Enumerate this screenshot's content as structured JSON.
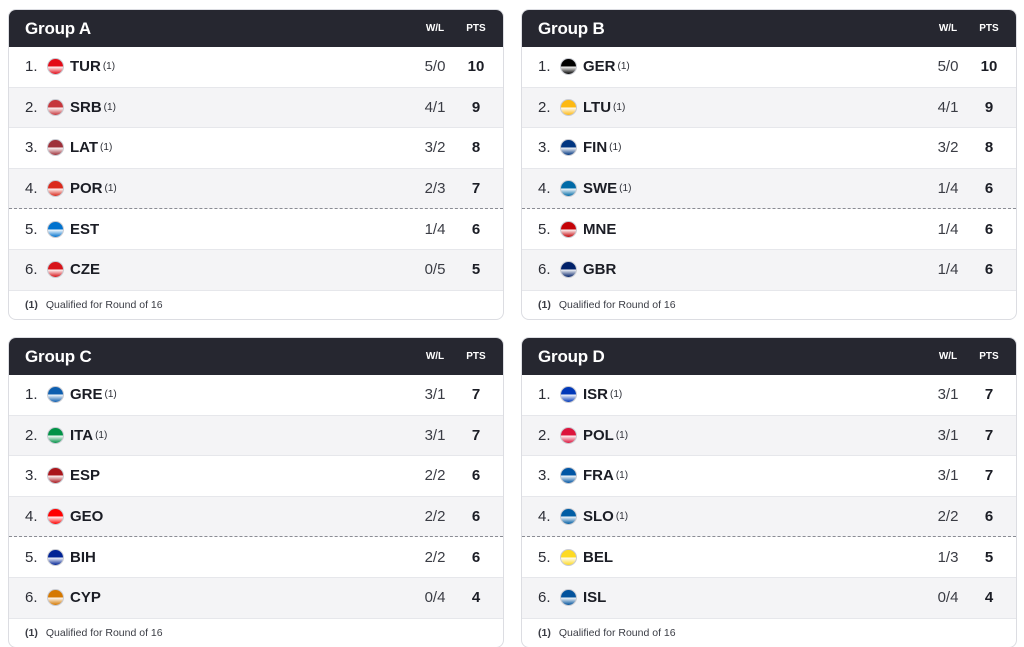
{
  "headers": {
    "wl": "W/L",
    "pts": "PTS"
  },
  "footnote": {
    "mark": "(1)",
    "text": "Qualified for Round of 16"
  },
  "groups": [
    {
      "title": "Group A",
      "rows": [
        {
          "rank": "1.",
          "team": "TUR",
          "q": "(1)",
          "wl": "5/0",
          "pts": "10",
          "flag": "tur"
        },
        {
          "rank": "2.",
          "team": "SRB",
          "q": "(1)",
          "wl": "4/1",
          "pts": "9",
          "flag": "srb"
        },
        {
          "rank": "3.",
          "team": "LAT",
          "q": "(1)",
          "wl": "3/2",
          "pts": "8",
          "flag": "lat"
        },
        {
          "rank": "4.",
          "team": "POR",
          "q": "(1)",
          "wl": "2/3",
          "pts": "7",
          "flag": "por"
        },
        {
          "rank": "5.",
          "team": "EST",
          "q": "",
          "wl": "1/4",
          "pts": "6",
          "flag": "est"
        },
        {
          "rank": "6.",
          "team": "CZE",
          "q": "",
          "wl": "0/5",
          "pts": "5",
          "flag": "cze"
        }
      ]
    },
    {
      "title": "Group B",
      "rows": [
        {
          "rank": "1.",
          "team": "GER",
          "q": "(1)",
          "wl": "5/0",
          "pts": "10",
          "flag": "ger"
        },
        {
          "rank": "2.",
          "team": "LTU",
          "q": "(1)",
          "wl": "4/1",
          "pts": "9",
          "flag": "ltu"
        },
        {
          "rank": "3.",
          "team": "FIN",
          "q": "(1)",
          "wl": "3/2",
          "pts": "8",
          "flag": "fin"
        },
        {
          "rank": "4.",
          "team": "SWE",
          "q": "(1)",
          "wl": "1/4",
          "pts": "6",
          "flag": "swe"
        },
        {
          "rank": "5.",
          "team": "MNE",
          "q": "",
          "wl": "1/4",
          "pts": "6",
          "flag": "mne"
        },
        {
          "rank": "6.",
          "team": "GBR",
          "q": "",
          "wl": "1/4",
          "pts": "6",
          "flag": "gbr"
        }
      ]
    },
    {
      "title": "Group C",
      "rows": [
        {
          "rank": "1.",
          "team": "GRE",
          "q": "(1)",
          "wl": "3/1",
          "pts": "7",
          "flag": "gre"
        },
        {
          "rank": "2.",
          "team": "ITA",
          "q": "(1)",
          "wl": "3/1",
          "pts": "7",
          "flag": "ita"
        },
        {
          "rank": "3.",
          "team": "ESP",
          "q": "",
          "wl": "2/2",
          "pts": "6",
          "flag": "esp"
        },
        {
          "rank": "4.",
          "team": "GEO",
          "q": "",
          "wl": "2/2",
          "pts": "6",
          "flag": "geo"
        },
        {
          "rank": "5.",
          "team": "BIH",
          "q": "",
          "wl": "2/2",
          "pts": "6",
          "flag": "bih"
        },
        {
          "rank": "6.",
          "team": "CYP",
          "q": "",
          "wl": "0/4",
          "pts": "4",
          "flag": "cyp"
        }
      ]
    },
    {
      "title": "Group D",
      "rows": [
        {
          "rank": "1.",
          "team": "ISR",
          "q": "(1)",
          "wl": "3/1",
          "pts": "7",
          "flag": "isr"
        },
        {
          "rank": "2.",
          "team": "POL",
          "q": "(1)",
          "wl": "3/1",
          "pts": "7",
          "flag": "pol"
        },
        {
          "rank": "3.",
          "team": "FRA",
          "q": "(1)",
          "wl": "3/1",
          "pts": "7",
          "flag": "fra"
        },
        {
          "rank": "4.",
          "team": "SLO",
          "q": "(1)",
          "wl": "2/2",
          "pts": "6",
          "flag": "slo"
        },
        {
          "rank": "5.",
          "team": "BEL",
          "q": "",
          "wl": "1/3",
          "pts": "5",
          "flag": "bel"
        },
        {
          "rank": "6.",
          "team": "ISL",
          "q": "",
          "wl": "0/4",
          "pts": "4",
          "flag": "isl"
        }
      ]
    }
  ],
  "flag_colors": {
    "tur": "#e30a17",
    "srb": "#c6363c",
    "lat": "#9e3039",
    "por": "#da291c",
    "est": "#0072ce",
    "cze": "#d7141a",
    "ger": "#000000",
    "ltu": "#fdb913",
    "fin": "#003580",
    "swe": "#006aa7",
    "mne": "#c40308",
    "gbr": "#012169",
    "gre": "#0d5eaf",
    "ita": "#009246",
    "esp": "#aa151b",
    "geo": "#ff0000",
    "bih": "#002395",
    "cyp": "#d57800",
    "isr": "#0038b8",
    "pol": "#dc143c",
    "fra": "#0055a4",
    "slo": "#005da4",
    "bel": "#fdda24",
    "isl": "#02529c"
  }
}
